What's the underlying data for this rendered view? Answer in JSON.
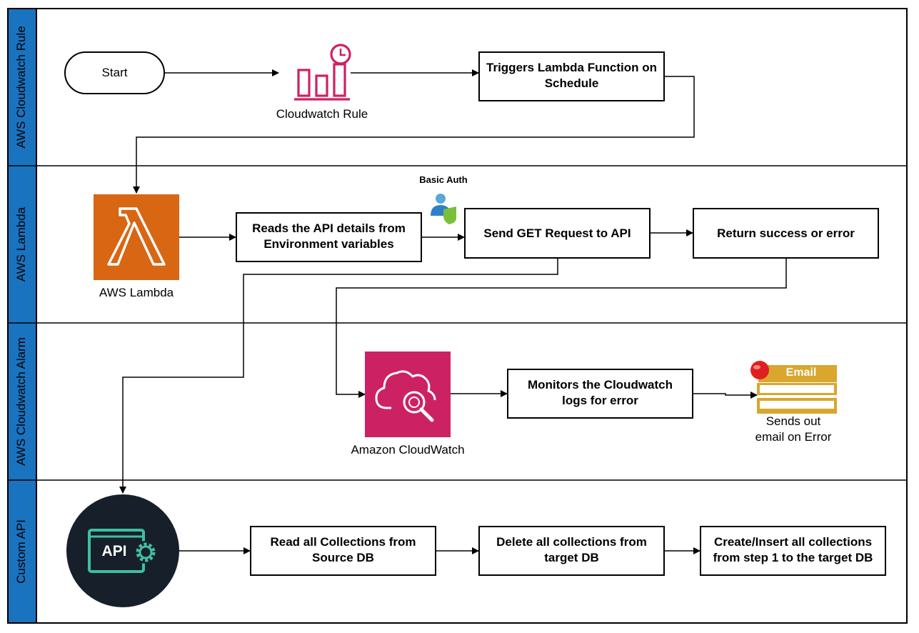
{
  "lanes": [
    {
      "title": "AWS Cloudwatch Rule"
    },
    {
      "title": "AWS Lambda"
    },
    {
      "title": "AWS Cloudwatch Alarm"
    },
    {
      "title": "Custom API"
    }
  ],
  "nodes": {
    "start": "Start",
    "cloudwatch_rule": "Cloudwatch Rule",
    "triggers": "Triggers Lambda Function on Schedule",
    "aws_lambda": "AWS Lambda",
    "reads_api": "Reads the API details from Environment variables",
    "basic_auth": "Basic Auth",
    "send_get": "Send GET Request to API",
    "return_result": "Return success or error",
    "amazon_cloudwatch": "Amazon CloudWatch",
    "monitors": "Monitors the Cloudwatch logs for error",
    "email_badge": "Email",
    "sends_out_line1": "Sends out",
    "sends_out_line2": "email on Error",
    "api_logo": "API",
    "read_collections": "Read all Collections from Source DB",
    "delete_collections": "Delete all collections from target DB",
    "create_insert": "Create/Insert all collections from step 1 to the target DB"
  },
  "colors": {
    "lane_header": "#1a73bf",
    "lambda_orange": "#d86613",
    "cloudwatch_pink": "#cc2264",
    "api_dark": "#17202a",
    "api_teal": "#3fbfa0",
    "email_gold": "#d9a62e",
    "alert_red": "#e02020"
  },
  "icons": {
    "cloudwatch_rule": "bar-chart-clock-icon",
    "lambda": "lambda-icon",
    "cloudwatch": "cloud-magnifier-icon",
    "basic_auth": "user-shield-icon",
    "email": "email-alert-icon",
    "api": "api-gear-icon"
  }
}
